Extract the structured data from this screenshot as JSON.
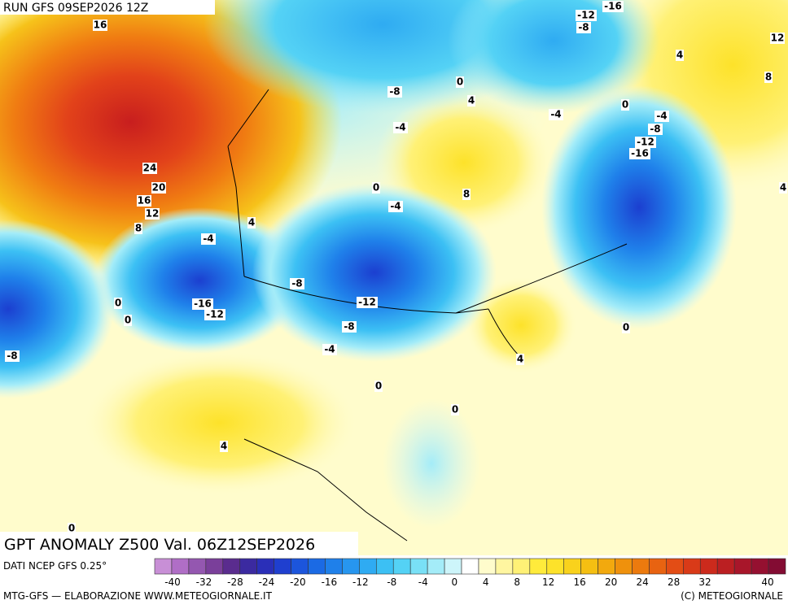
{
  "header": {
    "run": "RUN GFS 09SEP2026 12Z"
  },
  "map": {
    "title": "GPT ANOMALY Z500 Val. 06Z12SEP2026",
    "contour_labels": [
      "16",
      "-12",
      "-16",
      "-8",
      "12",
      "4",
      "8",
      "0",
      "-8",
      "4",
      "0",
      "-4",
      "-4",
      "-4",
      "-8",
      "-12",
      "-16",
      "24",
      "20",
      "0",
      "8",
      "4",
      "-4",
      "16",
      "12",
      "4",
      "8",
      "-4",
      "-8",
      "0",
      "-16",
      "-12",
      "-12",
      "0",
      "-8",
      "0",
      "-4",
      "-8",
      "4",
      "0",
      "0",
      "4",
      "0"
    ]
  },
  "colorbar": {
    "source": "DATI NCEP GFS 0.25°",
    "colors": [
      "#c88fd6",
      "#b06ec6",
      "#9457b0",
      "#7a3f9a",
      "#5a2c8e",
      "#3b2aa0",
      "#2a2fb8",
      "#1f3fcf",
      "#1c55dc",
      "#1b6ae4",
      "#1f80ea",
      "#2796ef",
      "#2fabf2",
      "#3cc0f4",
      "#54d2f5",
      "#79e0f6",
      "#a4ecf8",
      "#cdf5fa",
      "#ffffff",
      "#fffccc",
      "#fff6a0",
      "#fff176",
      "#ffeb3b",
      "#fde22a",
      "#f9d21c",
      "#f5bf12",
      "#f2a90e",
      "#ef910c",
      "#ec7a0e",
      "#e86311",
      "#e34d15",
      "#d93a18",
      "#cc2a1c",
      "#bb1f22",
      "#a8162a",
      "#951030",
      "#830c33"
    ],
    "ticks": [
      "-40",
      "-32",
      "-28",
      "-24",
      "-20",
      "-16",
      "-12",
      "-8",
      "-4",
      "0",
      "4",
      "8",
      "12",
      "16",
      "20",
      "24",
      "28",
      "32",
      "40"
    ]
  },
  "footer": {
    "left": "MTG-GFS — ELABORAZIONE WWW.METEOGIORNALE.IT",
    "right": "(C) METEOGIORNALE"
  }
}
